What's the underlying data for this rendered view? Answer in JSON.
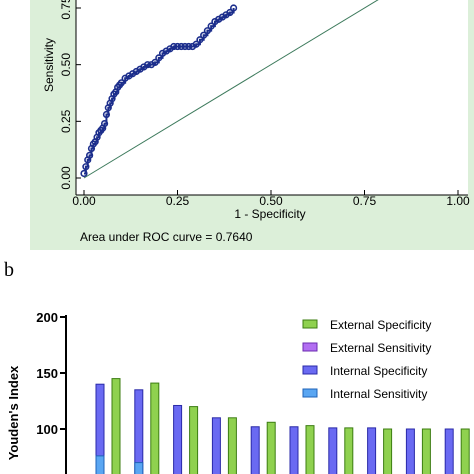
{
  "panel_label": "b",
  "chart_data": [
    {
      "type": "line",
      "xlabel": "1 - Specificity",
      "ylabel": "Sensitivity",
      "xlim": [
        0,
        1
      ],
      "ylim": [
        0,
        0.75
      ],
      "x_ticks": [
        "0.00",
        "0.25",
        "0.50",
        "0.75",
        "1.00"
      ],
      "y_ticks": [
        "0.00",
        "0.25",
        "0.50",
        "0.75"
      ],
      "annotation": "Area under ROC curve = 0.7640",
      "background": "#dcefd9",
      "series": [
        {
          "x": [
            0,
            0.005,
            0.01,
            0.015,
            0.02,
            0.025,
            0.03,
            0.035,
            0.04,
            0.045,
            0.05,
            0.055,
            0.06,
            0.065,
            0.07,
            0.075,
            0.08,
            0.085,
            0.09,
            0.095,
            0.1,
            0.11,
            0.12,
            0.13,
            0.14,
            0.15,
            0.16,
            0.17,
            0.18,
            0.19,
            0.2,
            0.21,
            0.22,
            0.23,
            0.24,
            0.25,
            0.26,
            0.27,
            0.28,
            0.29,
            0.3,
            0.31,
            0.32,
            0.33,
            0.34,
            0.35,
            0.36,
            0.37,
            0.38,
            0.39,
            0.4
          ],
          "y": [
            0.02,
            0.05,
            0.08,
            0.1,
            0.13,
            0.15,
            0.16,
            0.18,
            0.2,
            0.21,
            0.22,
            0.24,
            0.28,
            0.31,
            0.33,
            0.35,
            0.37,
            0.38,
            0.4,
            0.41,
            0.42,
            0.44,
            0.45,
            0.46,
            0.47,
            0.48,
            0.49,
            0.5,
            0.5,
            0.51,
            0.53,
            0.55,
            0.56,
            0.57,
            0.58,
            0.58,
            0.58,
            0.58,
            0.58,
            0.58,
            0.59,
            0.61,
            0.63,
            0.65,
            0.67,
            0.69,
            0.7,
            0.71,
            0.72,
            0.73,
            0.75
          ],
          "color": "#1c2e8c"
        }
      ],
      "reference_line": {
        "x": [
          0,
          1
        ],
        "y": [
          0,
          1
        ],
        "color": "#3d7a5c"
      }
    },
    {
      "type": "bar",
      "ylabel": "Youden's Index",
      "ylim": [
        0,
        200
      ],
      "y_ticks": [
        "100",
        "150",
        "200"
      ],
      "series": [
        {
          "name": "External Specificity",
          "color": "#8fd14f",
          "edge": "#3c7d12",
          "values": [
            145,
            141,
            120,
            110,
            106,
            103,
            101,
            100,
            100,
            100
          ]
        },
        {
          "name": "External Sensitivity",
          "color": "#b26ef2",
          "edge": "#6b2bb0",
          "values": []
        },
        {
          "name": "Internal Specificity",
          "color": "#6a6af2",
          "edge": "#2a2aa8",
          "values": [
            140,
            135,
            121,
            110,
            102,
            102,
            101,
            101,
            100,
            100
          ]
        },
        {
          "name": "Internal Sensitivity",
          "color": "#5aa6f2",
          "edge": "#1f63b8",
          "values": [
            76,
            70
          ]
        }
      ]
    }
  ]
}
